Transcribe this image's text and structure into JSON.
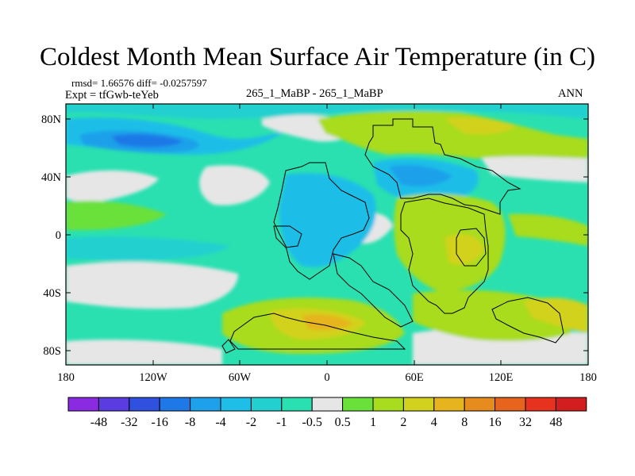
{
  "title": "Coldest Month Mean Surface Air Temperature (in C)",
  "stats_line": "rmsd= 1.66576 diff= -0.0257597",
  "experiment_line": "Expt = tfGwb-teYeb",
  "runs_line": "265_1_MaBP - 265_1_MaBP",
  "season": "ANN",
  "lat_labels": [
    "80N",
    "40N",
    "0",
    "40S",
    "80S"
  ],
  "lon_labels": [
    "180",
    "120W",
    "60W",
    "0",
    "60E",
    "120E",
    "180"
  ],
  "colorbar": {
    "labels": [
      "-48",
      "-32",
      "-16",
      "-8",
      "-4",
      "-2",
      "-1",
      "-0.5",
      "0.5",
      "1",
      "2",
      "4",
      "8",
      "16",
      "32",
      "48"
    ],
    "colors": [
      "#8a2be2",
      "#5a3ce0",
      "#3050e0",
      "#1e78e6",
      "#1ea0ea",
      "#1ebee8",
      "#22d0d0",
      "#2ae0b0",
      "#e6e6e6",
      "#6ae03a",
      "#a8dc1e",
      "#d2d21e",
      "#e6b41e",
      "#e68c1e",
      "#e6641e",
      "#e6321e",
      "#d21e1e"
    ]
  }
}
